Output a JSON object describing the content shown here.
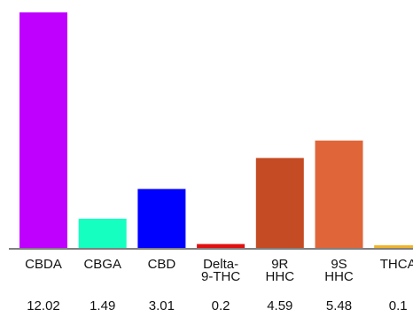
{
  "chart_data": {
    "type": "bar",
    "title": "",
    "xlabel": "",
    "ylabel": "",
    "ylim": [
      0,
      12.02
    ],
    "grid": false,
    "legend": "none",
    "categories": [
      [
        "CBDA"
      ],
      [
        "CBGA"
      ],
      [
        "CBD"
      ],
      [
        "Delta-",
        "9-THC"
      ],
      [
        "9R",
        "HHC"
      ],
      [
        "9S",
        "HHC"
      ],
      [
        "THCA"
      ]
    ],
    "values": [
      12.02,
      1.49,
      3.01,
      0.2,
      4.59,
      5.48,
      0.1
    ],
    "value_labels": [
      "12.02",
      "1.49",
      "3.01",
      "0.2",
      "4.59",
      "5.48",
      "0.1"
    ],
    "colors": [
      "#c000ff",
      "#14ffc0",
      "#0000ff",
      "#e10f0f",
      "#c44b23",
      "#e0663a",
      "#f0b429"
    ]
  }
}
